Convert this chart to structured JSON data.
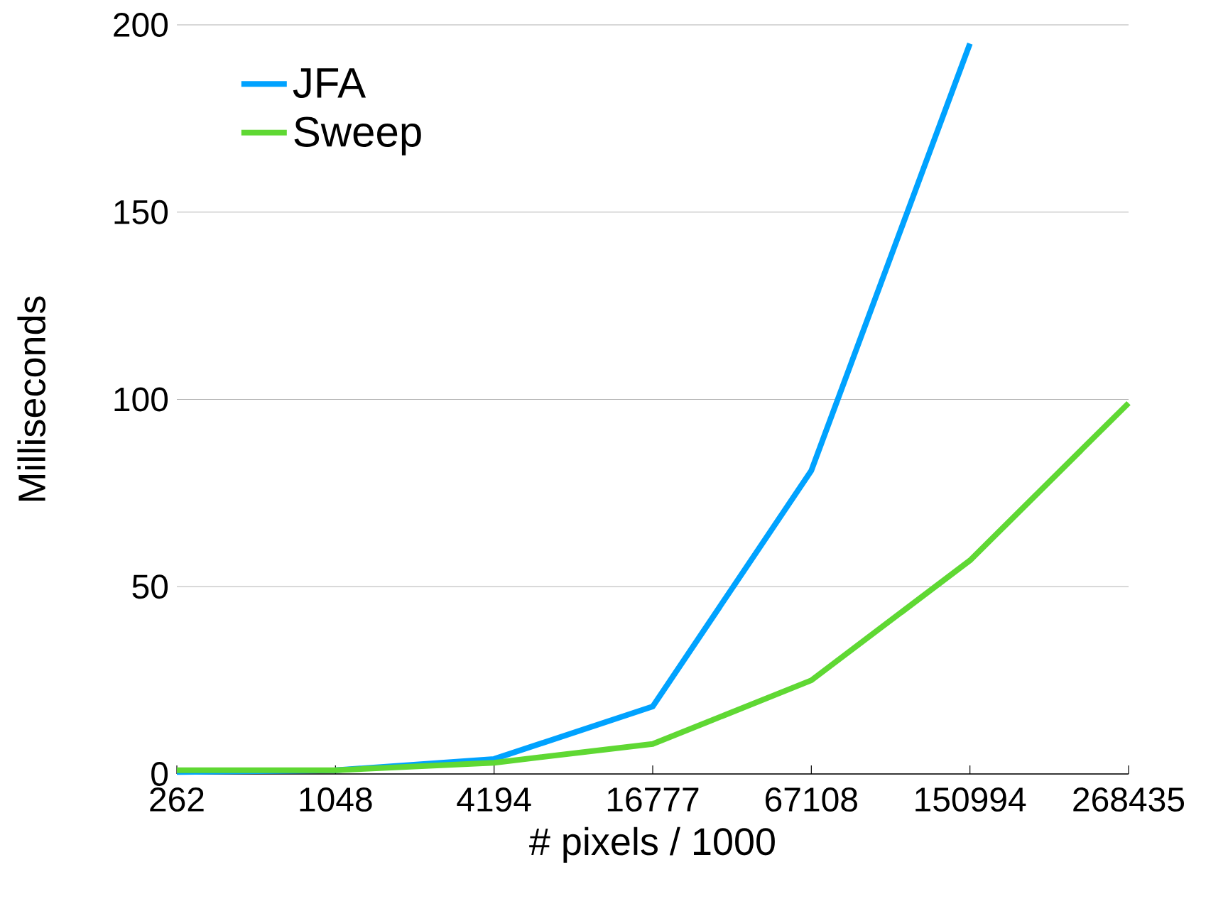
{
  "chart_data": {
    "type": "line",
    "xlabel": "# pixels / 1000",
    "ylabel": "Milliseconds",
    "categories": [
      "262",
      "1048",
      "4194",
      "16777",
      "67108",
      "150994",
      "268435"
    ],
    "series": [
      {
        "name": "JFA",
        "color": "#00a2ff",
        "values": [
          0.5,
          1,
          4,
          18,
          81,
          195,
          null
        ]
      },
      {
        "name": "Sweep",
        "color": "#5fd833",
        "values": [
          1,
          1,
          3,
          8,
          25,
          57,
          99
        ]
      }
    ],
    "ylim": [
      0,
      200
    ],
    "yticks": [
      0,
      50,
      100,
      150,
      200
    ],
    "grid": "y",
    "legend": "top left",
    "marker": "none",
    "line_style": "solid"
  }
}
